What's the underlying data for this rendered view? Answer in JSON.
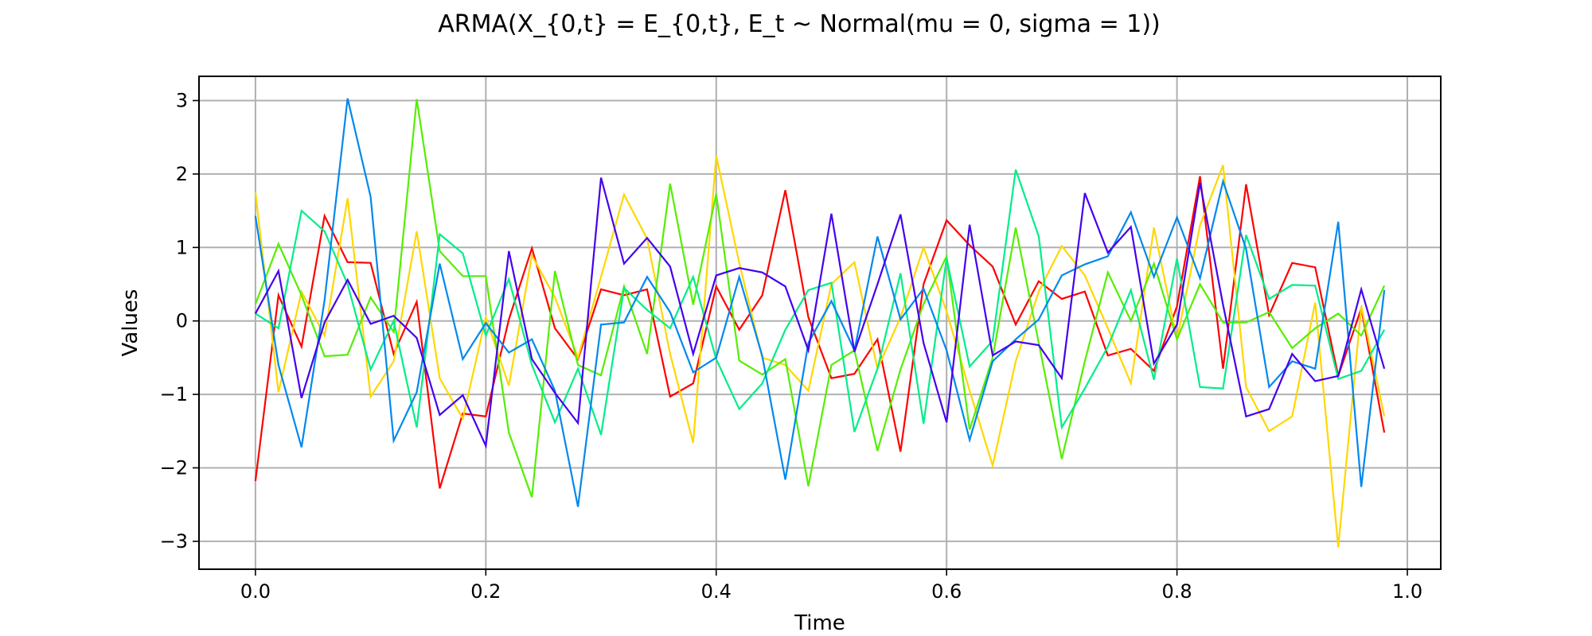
{
  "chart_data": {
    "type": "line",
    "title": "ARMA(X_{0,t} = E_{0,t}, E_t ~ Normal(mu = 0, sigma = 1))",
    "xlabel": "Time",
    "ylabel": "Values",
    "xlim": [
      -0.049,
      1.029
    ],
    "ylim": [
      -3.38,
      3.33
    ],
    "xticks": [
      0.0,
      0.2,
      0.4,
      0.6,
      0.8,
      1.0
    ],
    "xtick_labels": [
      "0.0",
      "0.2",
      "0.4",
      "0.6",
      "0.8",
      "1.0"
    ],
    "yticks": [
      -3,
      -2,
      -1,
      0,
      1,
      2,
      3
    ],
    "ytick_labels": [
      "−3",
      "−2",
      "−1",
      "0",
      "1",
      "2",
      "3"
    ],
    "grid": true,
    "legend": "none",
    "x": [
      0.0,
      0.02,
      0.04,
      0.06,
      0.08,
      0.1,
      0.12,
      0.14,
      0.16,
      0.18,
      0.2,
      0.22,
      0.24,
      0.26,
      0.28,
      0.3,
      0.32,
      0.34,
      0.36,
      0.38,
      0.4,
      0.42,
      0.44,
      0.46,
      0.48,
      0.5,
      0.52,
      0.54,
      0.56,
      0.58,
      0.6,
      0.62,
      0.64,
      0.66,
      0.68,
      0.7,
      0.72,
      0.74,
      0.76,
      0.78,
      0.8,
      0.82,
      0.84,
      0.86,
      0.88,
      0.9,
      0.92,
      0.94,
      0.96,
      0.98
    ],
    "series": [
      {
        "color": "#ff0000",
        "values": [
          -2.18,
          0.35,
          -0.35,
          1.43,
          0.8,
          0.79,
          -0.45,
          0.26,
          -2.28,
          -1.26,
          -1.3,
          0.02,
          0.99,
          -0.1,
          -0.52,
          0.43,
          0.35,
          0.43,
          -1.03,
          -0.85,
          0.47,
          -0.12,
          0.35,
          1.78,
          0.05,
          -0.78,
          -0.72,
          -0.25,
          -1.78,
          0.5,
          1.37,
          1.03,
          0.74,
          -0.05,
          0.54,
          0.3,
          0.4,
          -0.47,
          -0.38,
          -0.68,
          0.2,
          1.97,
          -0.65,
          1.86,
          0.08,
          0.79,
          0.73,
          -0.75,
          0.17,
          -1.52
        ]
      },
      {
        "color": "#ffd700",
        "values": [
          1.75,
          -0.97,
          0.4,
          -0.2,
          1.67,
          -1.03,
          -0.55,
          1.22,
          -0.78,
          -1.33,
          0.05,
          -0.88,
          0.89,
          0.32,
          -0.5,
          0.6,
          1.72,
          1.12,
          -0.45,
          -1.66,
          2.25,
          0.79,
          -0.5,
          -0.6,
          -0.95,
          0.5,
          0.8,
          -0.65,
          0.05,
          1.0,
          0.13,
          -0.95,
          -1.97,
          -0.55,
          0.4,
          1.02,
          0.62,
          -0.1,
          -0.85,
          1.27,
          -0.25,
          1.3,
          2.12,
          -0.9,
          -1.5,
          -1.3,
          0.25,
          -3.08,
          0.2,
          -1.3
        ]
      },
      {
        "color": "#55ee00",
        "values": [
          0.23,
          1.05,
          0.35,
          -0.48,
          -0.46,
          0.32,
          -0.15,
          3.02,
          0.95,
          0.61,
          0.61,
          -1.52,
          -2.4,
          0.68,
          -0.6,
          -0.74,
          0.47,
          -0.45,
          1.87,
          0.22,
          1.73,
          -0.54,
          -0.73,
          -0.52,
          -2.25,
          -0.6,
          -0.4,
          -1.77,
          -0.66,
          0.23,
          0.88,
          -1.48,
          -0.5,
          1.27,
          -0.3,
          -1.88,
          -0.55,
          0.66,
          0.0,
          0.78,
          -0.25,
          0.5,
          -0.02,
          -0.02,
          0.12,
          -0.37,
          -0.1,
          0.1,
          -0.2,
          0.48
        ]
      },
      {
        "color": "#00ee88",
        "values": [
          0.1,
          -0.1,
          1.5,
          1.22,
          0.5,
          -0.66,
          0.0,
          -1.45,
          1.18,
          0.92,
          -0.2,
          0.57,
          -0.6,
          -1.38,
          -0.65,
          -1.55,
          0.45,
          0.15,
          -0.1,
          0.6,
          -0.52,
          -1.2,
          -0.85,
          -0.12,
          0.42,
          0.52,
          -1.51,
          -0.65,
          0.65,
          -1.4,
          0.85,
          -0.62,
          -0.27,
          2.06,
          1.15,
          -1.45,
          -0.92,
          -0.35,
          0.42,
          -0.8,
          0.85,
          -0.9,
          -0.92,
          1.17,
          0.3,
          0.49,
          0.48,
          -0.79,
          -0.68,
          -0.12
        ]
      },
      {
        "color": "#0088ee",
        "values": [
          1.43,
          -0.6,
          -1.72,
          0.28,
          3.03,
          1.69,
          -1.63,
          -0.97,
          0.78,
          -0.52,
          -0.03,
          -0.43,
          -0.25,
          -0.95,
          -2.53,
          -0.05,
          -0.02,
          0.6,
          0.12,
          -0.7,
          -0.5,
          0.6,
          -0.48,
          -2.16,
          -0.3,
          0.27,
          -0.4,
          1.15,
          0.02,
          0.44,
          -0.4,
          -1.62,
          -0.55,
          -0.25,
          0.02,
          0.62,
          0.77,
          0.88,
          1.48,
          0.6,
          1.41,
          0.58,
          1.9,
          0.98,
          -0.9,
          -0.55,
          -0.65,
          1.35,
          -2.26,
          0.42
        ]
      },
      {
        "color": "#4400ee",
        "values": [
          0.1,
          0.68,
          -1.05,
          -0.02,
          0.56,
          -0.04,
          0.07,
          -0.23,
          -1.28,
          -1.01,
          -1.7,
          0.95,
          -0.52,
          -0.98,
          -1.39,
          1.95,
          0.78,
          1.13,
          0.74,
          -0.45,
          0.62,
          0.72,
          0.66,
          0.47,
          -0.4,
          1.46,
          -0.42,
          0.5,
          1.45,
          -0.3,
          -1.38,
          1.31,
          -0.47,
          -0.28,
          -0.33,
          -0.78,
          1.74,
          0.93,
          1.28,
          -0.58,
          -0.05,
          1.88,
          0.22,
          -1.3,
          -1.2,
          -0.45,
          -0.82,
          -0.75,
          0.43,
          -0.65
        ]
      }
    ]
  }
}
